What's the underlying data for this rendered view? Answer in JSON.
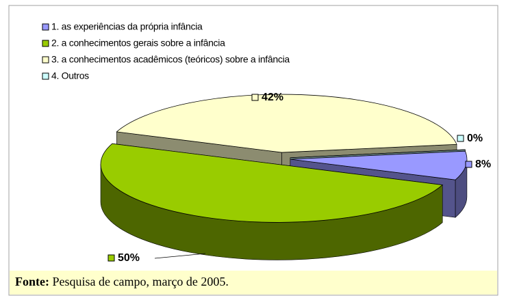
{
  "chart_data": {
    "type": "pie3d",
    "categories": [
      "1. as experiências da própria infância",
      "2. a conhecimentos gerais sobre a infância",
      "3. a conhecimentos acadêmicos (teóricos) sobre a infância",
      "4. Outros"
    ],
    "values": [
      8,
      50,
      42,
      0
    ],
    "value_labels": [
      "8%",
      "50%",
      "42%",
      "0%"
    ],
    "colors": [
      "#9999ff",
      "#99cc00",
      "#ffffcc",
      "#ccffff"
    ],
    "legend": "top-left",
    "source": {
      "label": "Fonte:",
      "text": "Pesquisa de campo, março de 2005."
    }
  }
}
